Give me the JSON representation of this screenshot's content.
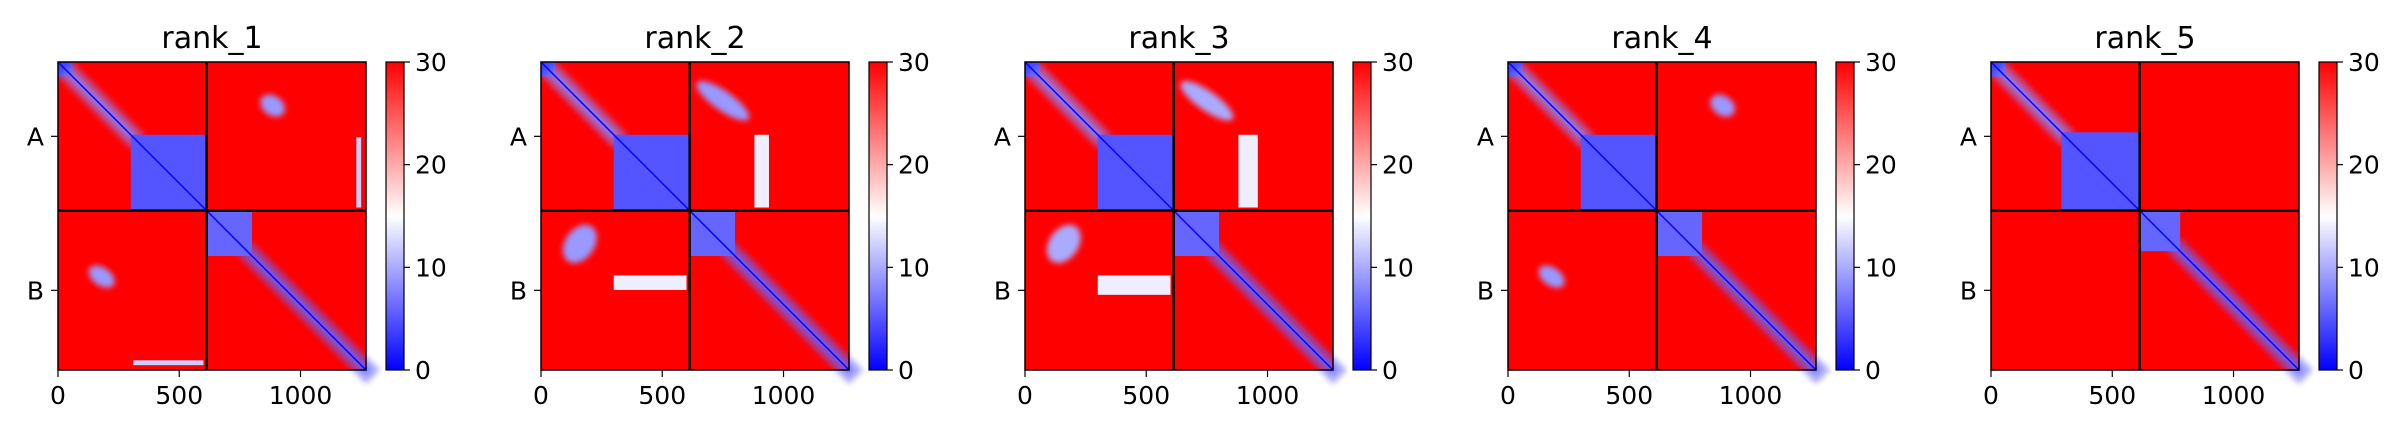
{
  "colors": {
    "low": "#0000ff",
    "mid": "#ffffff",
    "high": "#ff0000",
    "divider": "#000000"
  },
  "chart_data": [
    {
      "type": "heatmap",
      "title": "rank_1",
      "x_ticks": [
        "0",
        "500",
        "1000"
      ],
      "x_tick_values": [
        0,
        500,
        1000
      ],
      "xlim": [
        0,
        1270
      ],
      "row_labels": [
        "A",
        "B"
      ],
      "chain_lengths": [
        613,
        657
      ],
      "colorbar": {
        "range": [
          0,
          30
        ],
        "ticks": [
          "0",
          "10",
          "20",
          "30"
        ],
        "tick_values": [
          0,
          10,
          20,
          30
        ]
      },
      "blue_regions": [
        {
          "x": [
            0,
            60
          ],
          "y": [
            0,
            60
          ],
          "v": 4
        },
        {
          "x": [
            60,
            300
          ],
          "y": [
            60,
            300
          ],
          "v": 8,
          "band": true
        },
        {
          "x": [
            300,
            613
          ],
          "y": [
            300,
            613
          ],
          "v": 5
        },
        {
          "x": [
            613,
            800
          ],
          "y": [
            613,
            800
          ],
          "v": 6
        },
        {
          "x": [
            800,
            1270
          ],
          "y": [
            800,
            1270
          ],
          "v": 6,
          "band": true
        },
        {
          "x": [
            830,
            940
          ],
          "y": [
            120,
            240
          ],
          "v": 9,
          "blob": true
        },
        {
          "x": [
            120,
            240
          ],
          "y": [
            830,
            940
          ],
          "v": 9,
          "blob": true
        },
        {
          "x": [
            310,
            600
          ],
          "y": [
            1230,
            1250
          ],
          "v": 12
        },
        {
          "x": [
            1230,
            1250
          ],
          "y": [
            310,
            600
          ],
          "v": 12
        }
      ]
    },
    {
      "type": "heatmap",
      "title": "rank_2",
      "x_ticks": [
        "0",
        "500",
        "1000"
      ],
      "x_tick_values": [
        0,
        500,
        1000
      ],
      "xlim": [
        0,
        1270
      ],
      "row_labels": [
        "A",
        "B"
      ],
      "chain_lengths": [
        613,
        657
      ],
      "colorbar": {
        "range": [
          0,
          30
        ],
        "ticks": [
          "0",
          "10",
          "20",
          "30"
        ],
        "tick_values": [
          0,
          10,
          20,
          30
        ]
      },
      "blue_regions": [
        {
          "x": [
            0,
            60
          ],
          "y": [
            0,
            60
          ],
          "v": 4
        },
        {
          "x": [
            60,
            300
          ],
          "y": [
            60,
            300
          ],
          "v": 8,
          "band": true
        },
        {
          "x": [
            300,
            613
          ],
          "y": [
            300,
            613
          ],
          "v": 5
        },
        {
          "x": [
            613,
            800
          ],
          "y": [
            613,
            800
          ],
          "v": 6
        },
        {
          "x": [
            800,
            1270
          ],
          "y": [
            800,
            1270
          ],
          "v": 6,
          "band": true
        },
        {
          "x": [
            620,
            880
          ],
          "y": [
            100,
            220
          ],
          "v": 9,
          "blob": true
        },
        {
          "x": [
            100,
            220
          ],
          "y": [
            620,
            880
          ],
          "v": 9,
          "blob": true
        },
        {
          "x": [
            300,
            600
          ],
          "y": [
            880,
            940
          ],
          "v": 14
        },
        {
          "x": [
            880,
            940
          ],
          "y": [
            300,
            600
          ],
          "v": 14
        }
      ]
    },
    {
      "type": "heatmap",
      "title": "rank_3",
      "x_ticks": [
        "0",
        "500",
        "1000"
      ],
      "x_tick_values": [
        0,
        500,
        1000
      ],
      "xlim": [
        0,
        1270
      ],
      "row_labels": [
        "A",
        "B"
      ],
      "chain_lengths": [
        613,
        657
      ],
      "colorbar": {
        "range": [
          0,
          30
        ],
        "ticks": [
          "0",
          "10",
          "20",
          "30"
        ],
        "tick_values": [
          0,
          10,
          20,
          30
        ]
      },
      "blue_regions": [
        {
          "x": [
            0,
            60
          ],
          "y": [
            0,
            60
          ],
          "v": 4
        },
        {
          "x": [
            60,
            300
          ],
          "y": [
            60,
            300
          ],
          "v": 8,
          "band": true
        },
        {
          "x": [
            300,
            613
          ],
          "y": [
            300,
            613
          ],
          "v": 5
        },
        {
          "x": [
            613,
            800
          ],
          "y": [
            613,
            800
          ],
          "v": 6
        },
        {
          "x": [
            800,
            1270
          ],
          "y": [
            800,
            1270
          ],
          "v": 6,
          "band": true
        },
        {
          "x": [
            620,
            880
          ],
          "y": [
            100,
            220
          ],
          "v": 10,
          "blob": true
        },
        {
          "x": [
            100,
            220
          ],
          "y": [
            620,
            880
          ],
          "v": 10,
          "blob": true
        },
        {
          "x": [
            300,
            600
          ],
          "y": [
            880,
            960
          ],
          "v": 14
        },
        {
          "x": [
            880,
            960
          ],
          "y": [
            300,
            600
          ],
          "v": 14
        }
      ]
    },
    {
      "type": "heatmap",
      "title": "rank_4",
      "x_ticks": [
        "0",
        "500",
        "1000"
      ],
      "x_tick_values": [
        0,
        500,
        1000
      ],
      "xlim": [
        0,
        1270
      ],
      "row_labels": [
        "A",
        "B"
      ],
      "chain_lengths": [
        613,
        657
      ],
      "colorbar": {
        "range": [
          0,
          30
        ],
        "ticks": [
          "0",
          "10",
          "20",
          "30"
        ],
        "tick_values": [
          0,
          10,
          20,
          30
        ]
      },
      "blue_regions": [
        {
          "x": [
            0,
            60
          ],
          "y": [
            0,
            60
          ],
          "v": 4
        },
        {
          "x": [
            60,
            300
          ],
          "y": [
            60,
            300
          ],
          "v": 8,
          "band": true
        },
        {
          "x": [
            300,
            613
          ],
          "y": [
            300,
            613
          ],
          "v": 5
        },
        {
          "x": [
            613,
            800
          ],
          "y": [
            613,
            800
          ],
          "v": 6
        },
        {
          "x": [
            800,
            1270
          ],
          "y": [
            800,
            1270
          ],
          "v": 6,
          "band": true
        },
        {
          "x": [
            830,
            940
          ],
          "y": [
            120,
            240
          ],
          "v": 9,
          "blob": true
        },
        {
          "x": [
            120,
            240
          ],
          "y": [
            830,
            940
          ],
          "v": 9,
          "blob": true
        }
      ]
    },
    {
      "type": "heatmap",
      "title": "rank_5",
      "x_ticks": [
        "0",
        "500",
        "1000"
      ],
      "x_tick_values": [
        0,
        500,
        1000
      ],
      "xlim": [
        0,
        1270
      ],
      "row_labels": [
        "A",
        "B"
      ],
      "chain_lengths": [
        613,
        657
      ],
      "colorbar": {
        "range": [
          0,
          30
        ],
        "ticks": [
          "0",
          "10",
          "20",
          "30"
        ],
        "tick_values": [
          0,
          10,
          20,
          30
        ]
      },
      "blue_regions": [
        {
          "x": [
            0,
            60
          ],
          "y": [
            0,
            60
          ],
          "v": 4
        },
        {
          "x": [
            60,
            290
          ],
          "y": [
            60,
            290
          ],
          "v": 8,
          "band": true
        },
        {
          "x": [
            290,
            613
          ],
          "y": [
            290,
            613
          ],
          "v": 5
        },
        {
          "x": [
            613,
            780
          ],
          "y": [
            613,
            780
          ],
          "v": 6
        },
        {
          "x": [
            780,
            1270
          ],
          "y": [
            780,
            1270
          ],
          "v": 6,
          "band": true
        }
      ]
    }
  ]
}
